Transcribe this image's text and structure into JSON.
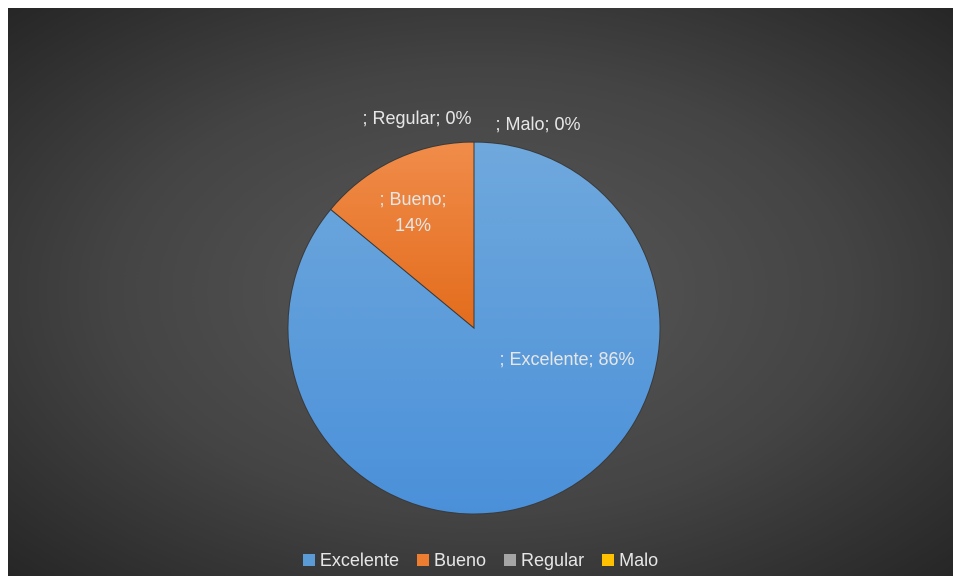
{
  "chart_data": {
    "type": "pie",
    "title": "",
    "categories": [
      "Excelente",
      "Bueno",
      "Regular",
      "Malo"
    ],
    "values": [
      86,
      14,
      0,
      0
    ],
    "colors": [
      "#5b9bd5",
      "#ed7d31",
      "#a5a5a5",
      "#ffc000"
    ],
    "data_labels": [
      "; Excelente; 86%",
      "; Bueno; 14%",
      "; Regular; 0%",
      "; Malo; 0%"
    ],
    "legend_position": "bottom",
    "start_angle": "12 o'clock, clockwise"
  }
}
